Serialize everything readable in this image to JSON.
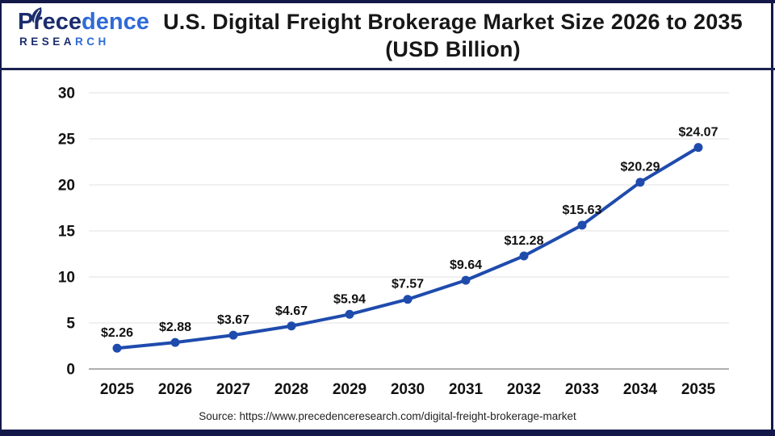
{
  "header": {
    "logo": {
      "brand": "Prece",
      "brand2": "dence",
      "subtitle": "RESEA",
      "subtitle2": "RCH"
    },
    "title_line1": "U.S. Digital Freight Brokerage Market Size 2026 to 2035",
    "title_line2": "(USD Billion)"
  },
  "footer": {
    "source": "Source: https://www.precedenceresearch.com/digital-freight-brokerage-market"
  },
  "colors": {
    "line": "#1f4bad",
    "marker": "#1f4bad",
    "grid": "#e8e8e8",
    "zero_axis": "#aeaeae",
    "axis_text": "#111111",
    "label_text": "#111111",
    "frame": "#131849",
    "brand_navy": "#1b2d6e",
    "brand_blue": "#2e6bd8"
  },
  "chart_data": {
    "type": "line",
    "title": "U.S. Digital Freight Brokerage Market Size 2026 to 2035 (USD Billion)",
    "xlabel": "",
    "ylabel": "",
    "categories": [
      "2025",
      "2026",
      "2027",
      "2028",
      "2029",
      "2030",
      "2031",
      "2032",
      "2033",
      "2034",
      "2035"
    ],
    "series": [
      {
        "name": "U.S. Digital Freight Brokerage Market Size (USD Billion)",
        "values": [
          2.26,
          2.88,
          3.67,
          4.67,
          5.94,
          7.57,
          9.64,
          12.28,
          15.63,
          20.29,
          24.07
        ]
      }
    ],
    "point_labels": [
      "$2.26",
      "$2.88",
      "$3.67",
      "$4.67",
      "$5.94",
      "$7.57",
      "$9.64",
      "$12.28",
      "$15.63",
      "$20.29",
      "$24.07"
    ],
    "yticks": [
      0,
      5,
      10,
      15,
      20,
      25,
      30
    ],
    "ylim": [
      0,
      30
    ],
    "grid": true,
    "legend": "none",
    "source": "https://www.precedenceresearch.com/digital-freight-brokerage-market"
  }
}
